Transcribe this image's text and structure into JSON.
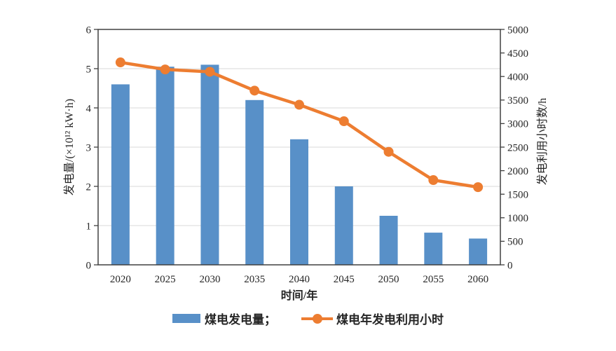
{
  "figure": {
    "background": "#ffffff",
    "text_color": "#262626",
    "axis_color": "#404040",
    "gridline_color": "#d9d9d9",
    "x_axis_title": "时间/年",
    "left_axis_title": "发电量/(×10¹² kW·h)",
    "right_axis_title": "发电利用小时数/h",
    "legend": [
      {
        "type": "bar",
        "label": "煤电发电量；",
        "color": "#5890C8"
      },
      {
        "type": "line",
        "label": "煤电年发电利用小时",
        "color": "#ED7D31"
      }
    ]
  },
  "chart_data": {
    "type": "bar",
    "subtype": "bar+line combo, dual y-axes",
    "categories": [
      "2020",
      "2025",
      "2030",
      "2035",
      "2040",
      "2045",
      "2050",
      "2055",
      "2060"
    ],
    "series": [
      {
        "name": "煤电发电量",
        "type": "bar",
        "axis": "left",
        "color": "#5890C8",
        "values": [
          4.6,
          5.05,
          5.1,
          4.2,
          3.2,
          2.0,
          1.25,
          0.82,
          0.67
        ]
      },
      {
        "name": "煤电年发电利用小时",
        "type": "line",
        "axis": "right",
        "color": "#ED7D31",
        "values": [
          4300,
          4150,
          4100,
          3700,
          3400,
          3050,
          2400,
          1800,
          1650
        ]
      }
    ],
    "title": "",
    "xlabel": "时间/年",
    "left_ylabel": "发电量/(×10¹² kW·h)",
    "right_ylabel": "发电利用小时数/h",
    "left_ylim": [
      0,
      6
    ],
    "left_yticks": [
      0,
      1,
      2,
      3,
      4,
      5,
      6
    ],
    "right_ylim": [
      0,
      5000
    ],
    "right_yticks": [
      0,
      500,
      1000,
      1500,
      2000,
      2500,
      3000,
      3500,
      4000,
      4500,
      5000
    ],
    "grid": "horizontal gridlines at left-axis integers 1-5",
    "plot_border": "full box",
    "legend_position": "bottom center"
  }
}
